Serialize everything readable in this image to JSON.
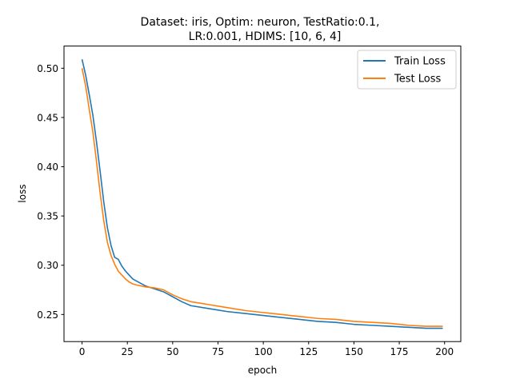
{
  "colors": {
    "train": "#1f77b4",
    "test": "#ff7f0e",
    "axis": "#000000",
    "legend_border": "#cccccc"
  },
  "chart_data": {
    "type": "line",
    "title_line1": "Dataset: iris, Optim: neuron, TestRatio:0.1,",
    "title_line2": "LR:0.001, HDIMS: [10, 6, 4]",
    "xlabel": "epoch",
    "ylabel": "loss",
    "xlim": [
      -9.95,
      208.95
    ],
    "ylim": [
      0.2225,
      0.5225
    ],
    "grid": false,
    "legend_position": "top-right",
    "xticks": [
      0,
      25,
      50,
      75,
      100,
      125,
      150,
      175,
      200
    ],
    "xtick_labels": [
      "0",
      "25",
      "50",
      "75",
      "100",
      "125",
      "150",
      "175",
      "200"
    ],
    "yticks": [
      0.25,
      0.3,
      0.35,
      0.4,
      0.45,
      0.5
    ],
    "ytick_labels": [
      "0.25",
      "0.30",
      "0.35",
      "0.40",
      "0.45",
      "0.50"
    ],
    "series": [
      {
        "name": "Train Loss",
        "x": [
          0,
          2,
          4,
          6,
          8,
          10,
          12,
          14,
          16,
          18,
          20,
          22,
          24,
          26,
          28,
          30,
          35,
          40,
          45,
          50,
          55,
          60,
          70,
          80,
          90,
          100,
          105,
          110,
          120,
          130,
          140,
          150,
          160,
          170,
          180,
          190,
          199
        ],
        "y": [
          0.509,
          0.493,
          0.473,
          0.452,
          0.425,
          0.395,
          0.364,
          0.338,
          0.32,
          0.308,
          0.306,
          0.299,
          0.294,
          0.29,
          0.286,
          0.284,
          0.279,
          0.276,
          0.273,
          0.268,
          0.263,
          0.259,
          0.256,
          0.253,
          0.251,
          0.249,
          0.248,
          0.247,
          0.245,
          0.243,
          0.242,
          0.24,
          0.239,
          0.238,
          0.237,
          0.236,
          0.236
        ]
      },
      {
        "name": "Test Loss",
        "x": [
          0,
          2,
          4,
          6,
          8,
          10,
          12,
          14,
          16,
          18,
          20,
          22,
          24,
          26,
          28,
          30,
          35,
          40,
          45,
          50,
          55,
          60,
          70,
          80,
          90,
          100,
          105,
          110,
          120,
          130,
          140,
          150,
          160,
          170,
          180,
          190,
          199
        ],
        "y": [
          0.5,
          0.482,
          0.458,
          0.435,
          0.405,
          0.373,
          0.345,
          0.323,
          0.31,
          0.301,
          0.294,
          0.29,
          0.286,
          0.283,
          0.281,
          0.28,
          0.278,
          0.277,
          0.275,
          0.27,
          0.266,
          0.263,
          0.26,
          0.257,
          0.254,
          0.252,
          0.251,
          0.25,
          0.248,
          0.246,
          0.245,
          0.243,
          0.242,
          0.241,
          0.239,
          0.238,
          0.238
        ]
      }
    ]
  }
}
